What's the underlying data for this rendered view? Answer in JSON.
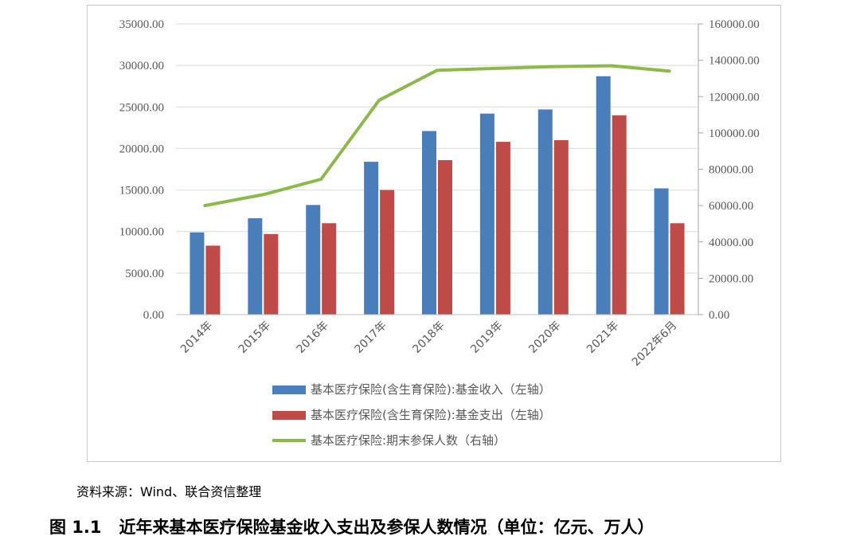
{
  "chart_data": {
    "type": "bar",
    "categories": [
      "2014年",
      "2015年",
      "2016年",
      "2017年",
      "2018年",
      "2019年",
      "2020年",
      "2021年",
      "2022年6月"
    ],
    "series": [
      {
        "name": "基本医疗保险(含生育保险):基金收入（左轴）",
        "kind": "bar",
        "axis": "left",
        "color": "#4a7ebb",
        "values": [
          9900,
          11600,
          13200,
          18400,
          22100,
          24200,
          24700,
          28700,
          15200
        ]
      },
      {
        "name": "基本医疗保险(含生育保险):基金支出（左轴）",
        "kind": "bar",
        "axis": "left",
        "color": "#be4b48",
        "values": [
          8300,
          9700,
          11000,
          15000,
          18600,
          20800,
          21000,
          24000,
          11000
        ]
      },
      {
        "name": "基本医疗保险:期末参保人数（右轴）",
        "kind": "line",
        "axis": "right",
        "color": "#8db84a",
        "values": [
          60000,
          66000,
          74500,
          118000,
          134500,
          135500,
          136500,
          137000,
          134000
        ]
      }
    ],
    "ylim_left": [
      0,
      35000
    ],
    "yticks_left": [
      "35000.00",
      "30000.00",
      "25000.00",
      "20000.00",
      "15000.00",
      "10000.00",
      "5000.00",
      "0.00"
    ],
    "ylim_right": [
      0,
      160000
    ],
    "yticks_right": [
      "160000.00",
      "140000.00",
      "120000.00",
      "100000.00",
      "80000.00",
      "60000.00",
      "40000.00",
      "20000.00",
      "0.00"
    ],
    "grid": true,
    "legend_position": "bottom"
  },
  "source_text": "资料来源：Wind、联合资信整理",
  "caption": {
    "number": "图 1.1",
    "title": "近年来基本医疗保险基金收入支出及参保人数情况（单位：亿元、万人）"
  }
}
